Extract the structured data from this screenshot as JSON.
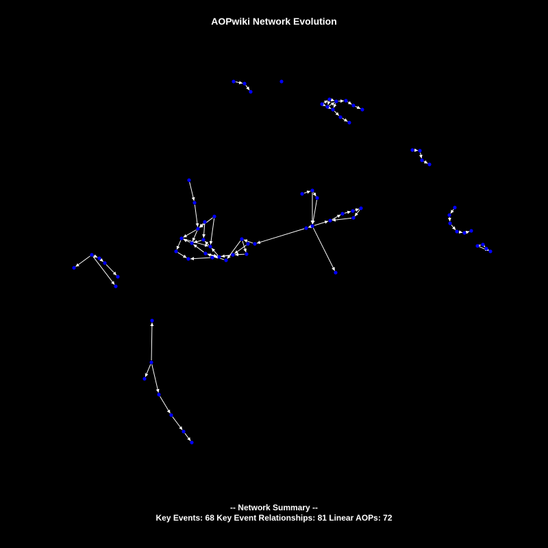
{
  "title": "AOPwiki Network Evolution",
  "summary": {
    "heading": "-- Network Summary --",
    "stats": "Key Events: 68  Key Event Relationships: 81  Linear AOPs: 72"
  },
  "colors": {
    "background": "#000000",
    "node": "#0000ff",
    "edge": "#ffffff",
    "text": "#ffffff"
  }
}
